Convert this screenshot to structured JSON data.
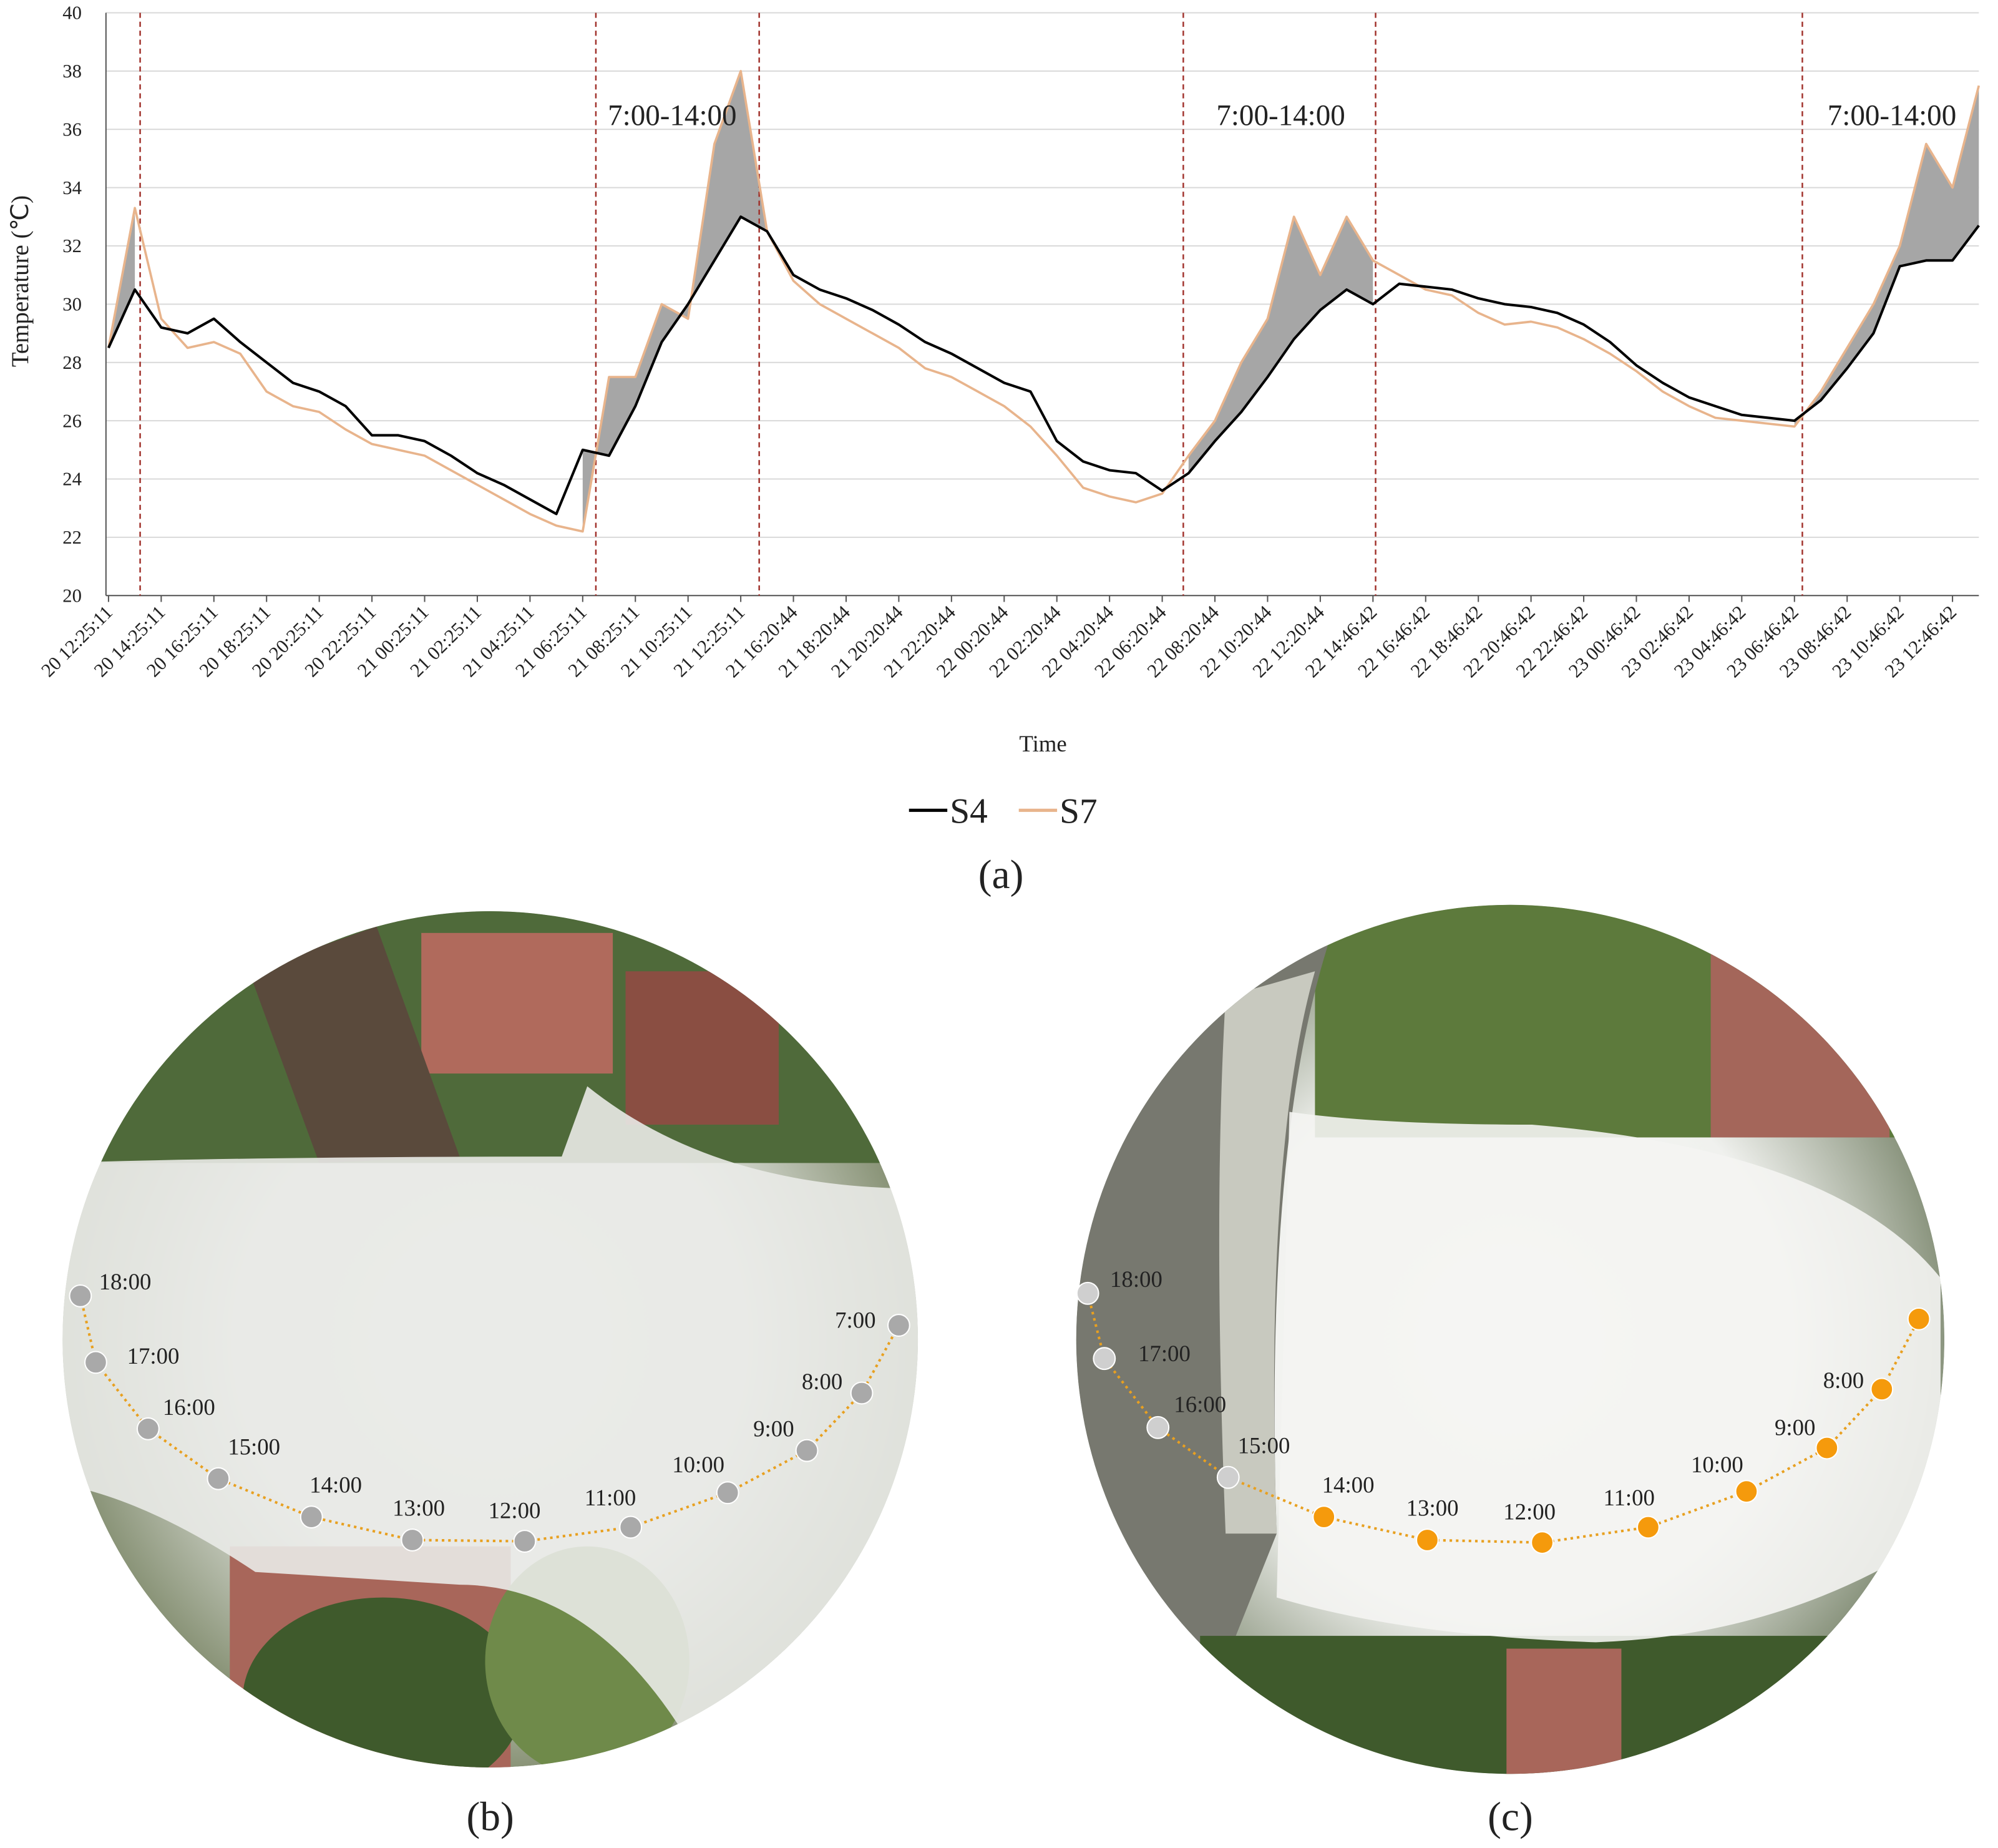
{
  "chart_data": {
    "type": "line",
    "ylabel": "Temperature (℃)",
    "xlabel": "Time",
    "categories": [
      "20 12:25:11",
      null,
      "20 14:25:11",
      null,
      "20 16:25:11",
      null,
      "20 18:25:11",
      null,
      "20 20:25:11",
      null,
      "20 22:25:11",
      null,
      "21 00:25:11",
      null,
      "21 02:25:11",
      null,
      "21 04:25:11",
      null,
      "21 06:25:11",
      null,
      "21 08:25:11",
      null,
      "21 10:25:11",
      null,
      "21 12:25:11",
      null,
      "21 16:20:44",
      null,
      "21 18:20:44",
      null,
      "21 20:20:44",
      null,
      "21 22:20:44",
      null,
      "22 00:20:44",
      null,
      "22 02:20:44",
      null,
      "22 04:20:44",
      null,
      "22 06:20:44",
      null,
      "22 08:20:44",
      null,
      "22 10:20:44",
      null,
      "22 12:20:44",
      null,
      "22 14:46:42",
      null,
      "22 16:46:42",
      null,
      "22 18:46:42",
      null,
      "22 20:46:42",
      null,
      "22 22:46:42",
      null,
      "23 00:46:42",
      null,
      "23 02:46:42",
      null,
      "23 04:46:42",
      null,
      "23 06:46:42",
      null,
      "23 08:46:42",
      null,
      "23 10:46:42",
      null,
      "23 12:46:42",
      null
    ],
    "series": [
      {
        "name": "S4",
        "color": "#000000",
        "values": [
          28.5,
          30.5,
          29.2,
          29,
          29.5,
          28.7,
          28,
          27.3,
          27,
          26.5,
          25.5,
          25.5,
          25.3,
          24.8,
          24.2,
          23.8,
          23.3,
          22.8,
          25,
          24.8,
          26.5,
          28.7,
          30,
          31.5,
          33,
          32.5,
          31,
          30.5,
          30.2,
          29.8,
          29.3,
          28.7,
          28.3,
          27.8,
          27.3,
          27,
          25.3,
          24.6,
          24.3,
          24.2,
          23.6,
          24.2,
          25.3,
          26.3,
          27.5,
          28.8,
          29.8,
          30.5,
          30,
          30.7,
          30.6,
          30.5,
          30.2,
          30,
          29.9,
          29.7,
          29.3,
          28.7,
          27.9,
          27.3,
          26.8,
          26.5,
          26.2,
          26.1,
          26,
          26.7,
          27.8,
          29,
          31.3,
          31.5,
          31.5,
          32.7
        ]
      },
      {
        "name": "S7",
        "color": "#e8b48c",
        "values": [
          28.5,
          33.3,
          29.5,
          28.5,
          28.7,
          28.3,
          27,
          26.5,
          26.3,
          25.7,
          25.2,
          25,
          24.8,
          24.3,
          23.8,
          23.3,
          22.8,
          22.4,
          22.2,
          27.5,
          27.5,
          30,
          29.5,
          35.5,
          38,
          32.5,
          30.8,
          30,
          29.5,
          29,
          28.5,
          27.8,
          27.5,
          27,
          26.5,
          25.8,
          24.8,
          23.7,
          23.4,
          23.2,
          23.5,
          24.8,
          26,
          28,
          29.5,
          33,
          31,
          33,
          31.5,
          31,
          30.5,
          30.3,
          29.7,
          29.3,
          29.4,
          29.2,
          28.8,
          28.3,
          27.7,
          27,
          26.5,
          26.1,
          26,
          25.9,
          25.8,
          27,
          28.5,
          30,
          32,
          35.5,
          34,
          37.5
        ]
      }
    ],
    "ylim": [
      20,
      40
    ],
    "yticks": [
      20,
      22,
      24,
      26,
      28,
      30,
      32,
      34,
      36,
      38,
      40
    ],
    "grid": true,
    "shaded_spans": [
      [
        0,
        1
      ],
      [
        18,
        25
      ],
      [
        41,
        48
      ],
      [
        64,
        71
      ]
    ],
    "shade_color": "#a6a6a6",
    "vlines": [
      1.2,
      18.5,
      24.7,
      40.8,
      48.1,
      64.3
    ],
    "vline_color": "#a0302a",
    "annotations": [
      {
        "text": "7:00-14:00",
        "x": 21.4,
        "y": 36.5
      },
      {
        "text": "7:00-14:00",
        "x": 44.5,
        "y": 36.5
      },
      {
        "text": "7:00-14:00",
        "x": 67.7,
        "y": 36.5
      }
    ],
    "panel_label": "(a)"
  },
  "fisheye": [
    {
      "panel_label": "(b)",
      "times": [
        "18:00",
        "17:00",
        "16:00",
        "15:00",
        "14:00",
        "13:00",
        "12:00",
        "11:00",
        "10:00",
        "9:00",
        "8:00",
        "7:00"
      ],
      "colors": [
        "#a9a9a9",
        "#a9a9a9",
        "#a9a9a9",
        "#a9a9a9",
        "#a9a9a9",
        "#a9a9a9",
        "#a9a9a9",
        "#a9a9a9",
        "#a9a9a9",
        "#a9a9a9",
        "#a9a9a9",
        "#a9a9a9"
      ]
    },
    {
      "panel_label": "(c)",
      "times": [
        "18:00",
        "17:00",
        "16:00",
        "15:00",
        "14:00",
        "13:00",
        "12:00",
        "11:00",
        "10:00",
        "9:00",
        "8:00",
        null
      ],
      "colors": [
        "#cfcfcf",
        "#cfcfcf",
        "#cfcfcf",
        "#cfcfcf",
        "#f59a0c",
        "#f59a0c",
        "#f59a0c",
        "#f59a0c",
        "#f59a0c",
        "#f59a0c",
        "#f59a0c",
        "#f59a0c"
      ]
    }
  ]
}
